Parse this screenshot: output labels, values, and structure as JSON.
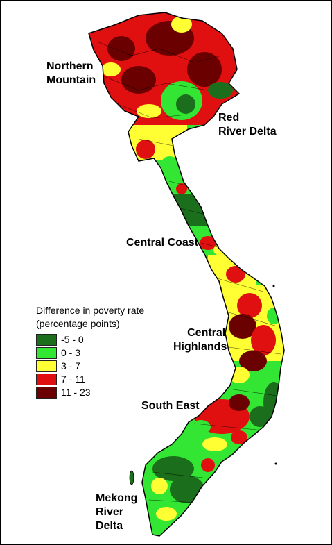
{
  "legend": {
    "title_line1": "Difference in poverty rate",
    "title_line2": "(percentage points)",
    "items": [
      {
        "label": "-5 - 0",
        "color": "#1b6e1b"
      },
      {
        "label": "0 - 3",
        "color": "#33e633"
      },
      {
        "label": "3 - 7",
        "color": "#ffff33"
      },
      {
        "label": "7 - 11",
        "color": "#e01010"
      },
      {
        "label": "11 - 23",
        "color": "#6b0000"
      }
    ]
  },
  "regions": {
    "northern_mountain_1": "Northern",
    "northern_mountain_2": "Mountain",
    "red_river_1": "Red",
    "red_river_2": "River Delta",
    "central_coast": "Central Coast",
    "central_highlands_1": "Central",
    "central_highlands_2": "Highlands",
    "south_east": "South East",
    "mekong_1": "Mekong",
    "mekong_2": "River",
    "mekong_3": "Delta"
  }
}
